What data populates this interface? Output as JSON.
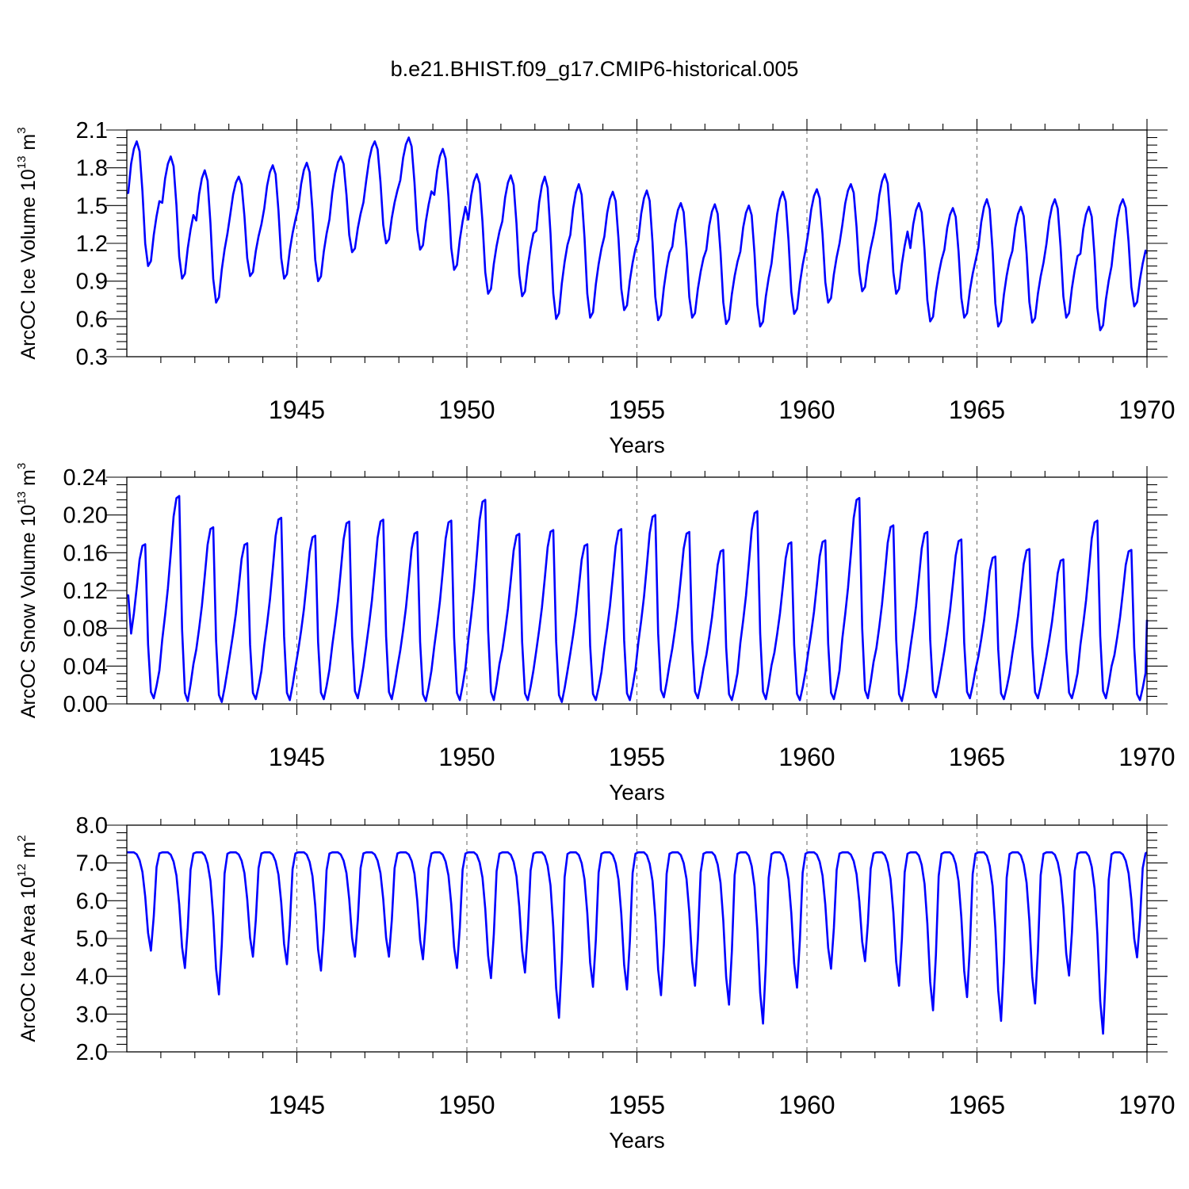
{
  "title": "b.e21.BHIST.f09_g17.CMIP6-historical.005",
  "chart_data": [
    {
      "type": "line",
      "name": "ice-volume",
      "ylabel_main": "ArcOC Ice Volume 10",
      "ylabel_exp": "13",
      "ylabel_unit": " m",
      "ylabel_unit_exp": "3",
      "xlabel": "Years",
      "xlim": [
        1940,
        1970
      ],
      "ylim": [
        0.3,
        2.1
      ],
      "ytick_step": 0.3,
      "ytick_minor": 0.06,
      "yticks": [
        "0.3",
        "0.6",
        "0.9",
        "1.2",
        "1.5",
        "1.8",
        "2.1"
      ],
      "xticks": [
        "1945",
        "1950",
        "1955",
        "1960",
        "1965",
        "1970"
      ],
      "grid_x": true,
      "color": "#0000ff",
      "year_start": 1940,
      "annual_max": [
        2.01,
        1.89,
        1.78,
        1.73,
        1.82,
        1.84,
        1.89,
        2.01,
        2.04,
        1.95,
        1.75,
        1.74,
        1.73,
        1.67,
        1.61,
        1.62,
        1.52,
        1.51,
        1.5,
        1.61,
        1.63,
        1.67,
        1.75,
        1.52,
        1.48,
        1.55,
        1.49,
        1.55,
        1.49,
        1.55
      ],
      "annual_min": [
        1.02,
        0.92,
        0.73,
        0.94,
        0.92,
        0.9,
        1.13,
        1.2,
        1.15,
        0.99,
        0.8,
        0.78,
        0.6,
        0.61,
        0.67,
        0.59,
        0.61,
        0.56,
        0.54,
        0.64,
        0.73,
        0.82,
        0.8,
        0.58,
        0.61,
        0.54,
        0.57,
        0.61,
        0.51,
        0.7
      ],
      "start_value": 1.6,
      "end_value": 1.12
    },
    {
      "type": "line",
      "name": "snow-volume",
      "ylabel_main": "ArcOC Snow Volume 10",
      "ylabel_exp": "13",
      "ylabel_unit": " m",
      "ylabel_unit_exp": "3",
      "xlabel": "Years",
      "xlim": [
        1940,
        1970
      ],
      "ylim": [
        0.0,
        0.24
      ],
      "ytick_step": 0.04,
      "ytick_minor": 0.008,
      "yticks": [
        "0.00",
        "0.04",
        "0.08",
        "0.12",
        "0.16",
        "0.20",
        "0.24"
      ],
      "xticks": [
        "1945",
        "1950",
        "1955",
        "1960",
        "1965",
        "1970"
      ],
      "grid_x": true,
      "color": "#0000ff",
      "year_start": 1940,
      "annual_max": [
        0.169,
        0.22,
        0.187,
        0.17,
        0.197,
        0.178,
        0.193,
        0.195,
        0.182,
        0.194,
        0.216,
        0.18,
        0.184,
        0.169,
        0.185,
        0.2,
        0.182,
        0.163,
        0.204,
        0.171,
        0.173,
        0.218,
        0.189,
        0.182,
        0.174,
        0.156,
        0.164,
        0.153,
        0.194,
        0.163
      ],
      "annual_min": [
        0.006,
        0.003,
        0.002,
        0.005,
        0.004,
        0.005,
        0.006,
        0.005,
        0.003,
        0.004,
        0.004,
        0.004,
        0.002,
        0.004,
        0.004,
        0.007,
        0.006,
        0.004,
        0.005,
        0.004,
        0.005,
        0.006,
        0.003,
        0.007,
        0.006,
        0.005,
        0.006,
        0.006,
        0.006,
        0.004
      ],
      "start_value": 0.115,
      "end_value": 0.089
    },
    {
      "type": "line",
      "name": "ice-area",
      "ylabel_main": "ArcOC Ice Area 10",
      "ylabel_exp": "12",
      "ylabel_unit": " m",
      "ylabel_unit_exp": "2",
      "xlabel": "Years",
      "xlim": [
        1940,
        1970
      ],
      "ylim": [
        2.0,
        8.0
      ],
      "ytick_step": 1.0,
      "ytick_minor": 0.2,
      "yticks": [
        "2.0",
        "3.0",
        "4.0",
        "5.0",
        "6.0",
        "7.0",
        "8.0"
      ],
      "xticks": [
        "1945",
        "1950",
        "1955",
        "1960",
        "1965",
        "1970"
      ],
      "grid_x": true,
      "color": "#0000ff",
      "year_start": 1940,
      "annual_max": [
        7.28,
        7.28,
        7.28,
        7.28,
        7.28,
        7.28,
        7.28,
        7.28,
        7.28,
        7.28,
        7.28,
        7.28,
        7.28,
        7.28,
        7.28,
        7.28,
        7.28,
        7.28,
        7.28,
        7.28,
        7.28,
        7.28,
        7.28,
        7.28,
        7.28,
        7.28,
        7.28,
        7.28,
        7.28,
        7.28
      ],
      "annual_min": [
        4.68,
        4.22,
        3.52,
        4.52,
        4.32,
        4.15,
        4.52,
        4.52,
        4.45,
        4.22,
        3.95,
        4.1,
        2.9,
        3.72,
        3.65,
        3.5,
        3.75,
        3.25,
        2.75,
        3.7,
        4.2,
        4.4,
        3.75,
        3.1,
        3.45,
        2.82,
        3.28,
        4.02,
        2.48,
        4.5
      ],
      "start_value": 7.28,
      "end_value": 7.28
    }
  ]
}
